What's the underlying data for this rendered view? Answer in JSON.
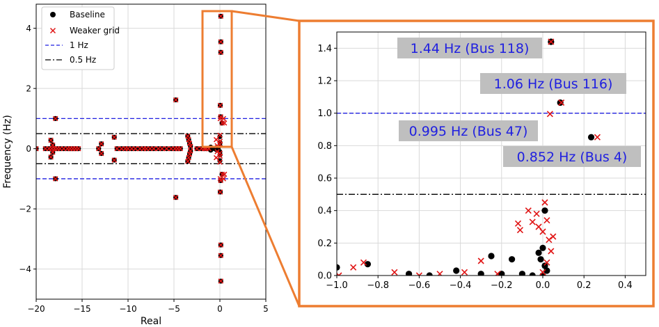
{
  "chart_data": [
    {
      "type": "scatter",
      "xlabel": "Real",
      "ylabel": "Frequency (Hz)",
      "xlim": [
        -20,
        5
      ],
      "ylim": [
        -5,
        4.8
      ],
      "xticks": [
        -20,
        -15,
        -10,
        -5,
        0,
        5
      ],
      "yticks": [
        -4,
        -2,
        0,
        2,
        4
      ],
      "grid": true,
      "legend_position": "top-left",
      "legend": [
        "Baseline",
        "Weaker grid",
        "1 Hz",
        "0.5 Hz"
      ],
      "reference_lines": [
        {
          "name": "1 Hz",
          "values": [
            1,
            -1
          ],
          "style": "dashed",
          "color": "#1f1fe0"
        },
        {
          "name": "0.5 Hz",
          "values": [
            0.5,
            -0.5
          ],
          "style": "dashdot",
          "color": "#000000"
        }
      ],
      "series": [
        {
          "name": "Baseline",
          "marker": "circle",
          "color": "#000000",
          "points": [
            [
              -20,
              0
            ],
            [
              -19,
              0
            ],
            [
              -18.6,
              0
            ],
            [
              -18.3,
              0
            ],
            [
              -18,
              0
            ],
            [
              -17.7,
              0
            ],
            [
              -17.4,
              0
            ],
            [
              -17,
              0
            ],
            [
              -16.6,
              0
            ],
            [
              -16.3,
              0
            ],
            [
              -16,
              0
            ],
            [
              -15.7,
              0
            ],
            [
              -15.4,
              0
            ],
            [
              -17.9,
              1.0
            ],
            [
              -17.9,
              -1.0
            ],
            [
              -18.4,
              0.28
            ],
            [
              -18.4,
              -0.28
            ],
            [
              -18.2,
              0.12
            ],
            [
              -18.2,
              -0.12
            ],
            [
              -13.2,
              0
            ],
            [
              -12.9,
              0.16
            ],
            [
              -12.9,
              -0.16
            ],
            [
              -11.5,
              0.38
            ],
            [
              -11.5,
              -0.38
            ],
            [
              -11.2,
              0
            ],
            [
              -10.7,
              0
            ],
            [
              -10.3,
              0
            ],
            [
              -10,
              0
            ],
            [
              -9.6,
              0
            ],
            [
              -9.2,
              0
            ],
            [
              -8.7,
              0
            ],
            [
              -8.3,
              0
            ],
            [
              -8,
              0
            ],
            [
              -7.6,
              0
            ],
            [
              -7.2,
              0
            ],
            [
              -6.7,
              0
            ],
            [
              -6.3,
              0
            ],
            [
              -5.8,
              0
            ],
            [
              -5.3,
              0
            ],
            [
              -4.9,
              0
            ],
            [
              -4.6,
              0
            ],
            [
              -4.3,
              0
            ],
            [
              -4.8,
              1.62
            ],
            [
              -4.8,
              -1.62
            ],
            [
              -3.5,
              0.42
            ],
            [
              -3.5,
              -0.42
            ],
            [
              -3.4,
              0.3
            ],
            [
              -3.4,
              -0.3
            ],
            [
              -3.3,
              0.18
            ],
            [
              -3.3,
              -0.18
            ],
            [
              -3.2,
              0.08
            ],
            [
              -3.2,
              -0.08
            ],
            [
              -2.5,
              0
            ],
            [
              -2,
              0
            ],
            [
              -1.7,
              0
            ],
            [
              -1.5,
              0
            ],
            [
              -1.2,
              0
            ],
            [
              -1,
              0.05
            ],
            [
              -1,
              -0.05
            ],
            [
              -0.6,
              0
            ],
            [
              -0.4,
              0.03
            ],
            [
              -0.4,
              -0.03
            ],
            [
              -0.2,
              0
            ],
            [
              0,
              0.4
            ],
            [
              0,
              -0.4
            ],
            [
              0.02,
              0.2
            ],
            [
              0.02,
              -0.2
            ],
            [
              0,
              0.1
            ],
            [
              0,
              -0.1
            ],
            [
              0.04,
              1.44
            ],
            [
              0.04,
              -1.44
            ],
            [
              0.08,
              1.06
            ],
            [
              0.08,
              -1.06
            ],
            [
              0.23,
              0.85
            ],
            [
              0.23,
              -0.85
            ],
            [
              0.1,
              3.2
            ],
            [
              0.1,
              -3.2
            ],
            [
              0.1,
              3.55
            ],
            [
              0.1,
              -3.55
            ],
            [
              0.1,
              4.4
            ],
            [
              0.1,
              -4.4
            ]
          ]
        },
        {
          "name": "Weaker grid",
          "marker": "x",
          "color": "#e01414",
          "points": [
            [
              -20,
              0
            ],
            [
              -19,
              0
            ],
            [
              -18.6,
              0
            ],
            [
              -18.3,
              0
            ],
            [
              -18,
              0
            ],
            [
              -17.7,
              0
            ],
            [
              -17.4,
              0
            ],
            [
              -17,
              0
            ],
            [
              -16.6,
              0
            ],
            [
              -16.3,
              0
            ],
            [
              -16,
              0
            ],
            [
              -15.7,
              0
            ],
            [
              -15.4,
              0
            ],
            [
              -17.9,
              1.0
            ],
            [
              -17.9,
              -1.0
            ],
            [
              -18.4,
              0.28
            ],
            [
              -18.4,
              -0.28
            ],
            [
              -18.2,
              0.12
            ],
            [
              -18.2,
              -0.12
            ],
            [
              -13.2,
              0
            ],
            [
              -12.9,
              0.16
            ],
            [
              -12.9,
              -0.16
            ],
            [
              -11.5,
              0.38
            ],
            [
              -11.5,
              -0.38
            ],
            [
              -11.2,
              0
            ],
            [
              -10.7,
              0
            ],
            [
              -10.3,
              0
            ],
            [
              -10,
              0
            ],
            [
              -9.6,
              0
            ],
            [
              -9.2,
              0
            ],
            [
              -8.7,
              0
            ],
            [
              -8.3,
              0
            ],
            [
              -8,
              0
            ],
            [
              -7.6,
              0
            ],
            [
              -7.2,
              0
            ],
            [
              -6.7,
              0
            ],
            [
              -6.3,
              0
            ],
            [
              -5.8,
              0
            ],
            [
              -5.3,
              0
            ],
            [
              -4.9,
              0
            ],
            [
              -4.6,
              0
            ],
            [
              -4.3,
              0
            ],
            [
              -4.8,
              1.62
            ],
            [
              -4.8,
              -1.62
            ],
            [
              -3.5,
              0.42
            ],
            [
              -3.5,
              -0.42
            ],
            [
              -3.4,
              0.3
            ],
            [
              -3.4,
              -0.3
            ],
            [
              -3.3,
              0.18
            ],
            [
              -3.3,
              -0.18
            ],
            [
              -3.2,
              0.08
            ],
            [
              -3.2,
              -0.08
            ],
            [
              -2.5,
              0
            ],
            [
              -2,
              0
            ],
            [
              -1.7,
              0
            ],
            [
              -1.5,
              0
            ],
            [
              -1.2,
              0
            ],
            [
              -0.4,
              0.3
            ],
            [
              -0.4,
              -0.3
            ],
            [
              -0.3,
              0.1
            ],
            [
              -0.3,
              -0.1
            ],
            [
              0,
              0.45
            ],
            [
              0,
              -0.45
            ],
            [
              0.03,
              0.25
            ],
            [
              0.03,
              -0.25
            ],
            [
              0,
              0.15
            ],
            [
              0,
              -0.15
            ],
            [
              0.04,
              1.44
            ],
            [
              0.04,
              -1.44
            ],
            [
              0.09,
              1.06
            ],
            [
              0.09,
              -1.06
            ],
            [
              0.03,
              0.995
            ],
            [
              0.03,
              -0.995
            ],
            [
              0.26,
              0.85
            ],
            [
              0.26,
              -0.85
            ],
            [
              0.1,
              3.2
            ],
            [
              0.1,
              -3.2
            ],
            [
              0.1,
              3.55
            ],
            [
              0.1,
              -3.55
            ],
            [
              0.1,
              4.4
            ],
            [
              0.1,
              -4.4
            ],
            [
              0.4,
              1.0
            ],
            [
              0.4,
              -1.0
            ],
            [
              0.5,
              0.85
            ],
            [
              0.5,
              -0.85
            ]
          ]
        }
      ]
    },
    {
      "type": "scatter",
      "xlim": [
        -1.0,
        0.5
      ],
      "ylim": [
        0,
        1.5
      ],
      "xticks": [
        -1.0,
        -0.8,
        -0.6,
        -0.4,
        -0.2,
        0.0,
        0.2,
        0.4
      ],
      "yticks": [
        0.0,
        0.2,
        0.4,
        0.6,
        0.8,
        1.0,
        1.2,
        1.4
      ],
      "grid": true,
      "reference_lines": [
        {
          "name": "1 Hz",
          "values": [
            1.0
          ],
          "style": "dashed",
          "color": "#1f1fe0"
        },
        {
          "name": "0.5 Hz",
          "values": [
            0.5
          ],
          "style": "dashdot",
          "color": "#000000"
        }
      ],
      "annotations": [
        {
          "text": "1.44 Hz (Bus 118)"
        },
        {
          "text": "1.06 Hz (Bus 116)"
        },
        {
          "text": "0.995 Hz (Bus 47)"
        },
        {
          "text": "0.852 Hz (Bus 4)"
        }
      ],
      "series": [
        {
          "name": "Baseline",
          "marker": "circle",
          "color": "#000000",
          "points": [
            [
              -1.0,
              0.05
            ],
            [
              -0.85,
              0.07
            ],
            [
              -0.65,
              0.01
            ],
            [
              -0.55,
              0.0
            ],
            [
              -0.42,
              0.03
            ],
            [
              -0.3,
              0.01
            ],
            [
              -0.25,
              0.12
            ],
            [
              -0.2,
              0.01
            ],
            [
              -0.15,
              0.1
            ],
            [
              -0.1,
              0.01
            ],
            [
              -0.05,
              0.0
            ],
            [
              -0.02,
              0.14
            ],
            [
              -0.01,
              0.1
            ],
            [
              0.0,
              0.17
            ],
            [
              0.01,
              0.4
            ],
            [
              0.01,
              0.06
            ],
            [
              0.02,
              0.03
            ],
            [
              0.0,
              0.0
            ],
            [
              0.04,
              1.44
            ],
            [
              0.085,
              1.065
            ],
            [
              0.235,
              0.852
            ]
          ]
        },
        {
          "name": "Weaker grid",
          "marker": "x",
          "color": "#e01414",
          "points": [
            [
              -0.99,
              0.0
            ],
            [
              -0.92,
              0.05
            ],
            [
              -0.87,
              0.08
            ],
            [
              -0.72,
              0.02
            ],
            [
              -0.6,
              0.0
            ],
            [
              -0.5,
              0.01
            ],
            [
              -0.38,
              0.02
            ],
            [
              -0.3,
              0.09
            ],
            [
              -0.22,
              0.01
            ],
            [
              -0.12,
              0.32
            ],
            [
              -0.11,
              0.28
            ],
            [
              -0.07,
              0.4
            ],
            [
              -0.05,
              0.33
            ],
            [
              -0.03,
              0.38
            ],
            [
              -0.02,
              0.3
            ],
            [
              0.0,
              0.27
            ],
            [
              0.01,
              0.45
            ],
            [
              0.02,
              0.34
            ],
            [
              0.03,
              0.22
            ],
            [
              0.04,
              0.15
            ],
            [
              0.05,
              0.24
            ],
            [
              0.02,
              0.08
            ],
            [
              0.0,
              0.02
            ],
            [
              0.04,
              1.44
            ],
            [
              0.09,
              1.065
            ],
            [
              0.035,
              0.995
            ],
            [
              0.265,
              0.852
            ]
          ]
        }
      ]
    }
  ]
}
